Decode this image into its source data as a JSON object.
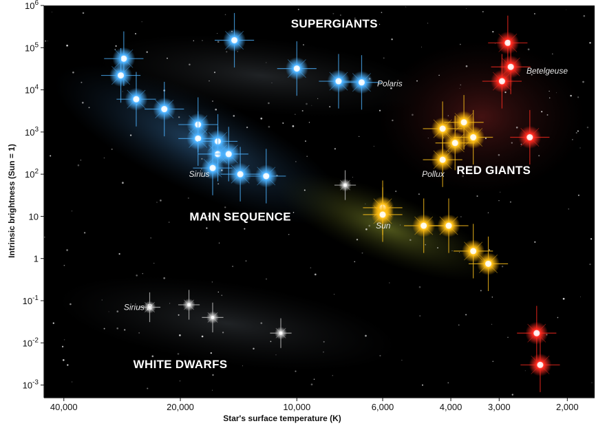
{
  "chart_data": {
    "type": "scatter",
    "title": "",
    "xlabel": "Star's surface temperature (K)",
    "ylabel": "Intrinsic brightness (Sun = 1)",
    "x_scale": "log",
    "x_reversed": true,
    "y_scale": "log",
    "xlim": [
      45000,
      1700
    ],
    "ylim": [
      0.0005,
      1000000
    ],
    "x_ticks": [
      {
        "value": 40000,
        "label": "40,000"
      },
      {
        "value": 20000,
        "label": "20,000"
      },
      {
        "value": 10000,
        "label": "10,000"
      },
      {
        "value": 6000,
        "label": "6,000"
      },
      {
        "value": 4000,
        "label": "4,000"
      },
      {
        "value": 3000,
        "label": "3,000"
      },
      {
        "value": 2000,
        "label": "2,000"
      }
    ],
    "y_ticks": [
      {
        "value": 1000000,
        "base": "10",
        "exp": "6"
      },
      {
        "value": 100000,
        "base": "10",
        "exp": "5"
      },
      {
        "value": 10000,
        "base": "10",
        "exp": "4"
      },
      {
        "value": 1000,
        "base": "10",
        "exp": "3"
      },
      {
        "value": 100,
        "base": "10",
        "exp": "2"
      },
      {
        "value": 10,
        "base": "10",
        "exp": ""
      },
      {
        "value": 1,
        "base": "1",
        "exp": ""
      },
      {
        "value": 0.1,
        "base": "10",
        "exp": "-1"
      },
      {
        "value": 0.01,
        "base": "10",
        "exp": "-2"
      },
      {
        "value": 0.001,
        "base": "10",
        "exp": "-3"
      }
    ],
    "regions": [
      {
        "label": "SUPERGIANTS",
        "x": 8000,
        "y": 300000
      },
      {
        "label": "RED GIANTS",
        "x": 3100,
        "y": 100
      },
      {
        "label": "MAIN SEQUENCE",
        "x": 14000,
        "y": 8
      },
      {
        "label": "WHITE DWARFS",
        "x": 20000,
        "y": 0.0025
      }
    ],
    "star_labels": [
      {
        "label": "Polaris",
        "x": 6200,
        "y": 14000
      },
      {
        "label": "Betelgeuse",
        "x": 2550,
        "y": 28000
      },
      {
        "label": "Sirius",
        "x": 19000,
        "y": 100
      },
      {
        "label": "Pollux",
        "x": 4750,
        "y": 100
      },
      {
        "label": "Sun",
        "x": 6250,
        "y": 6
      },
      {
        "label": "Sirius B",
        "x": 28000,
        "y": 0.07
      }
    ],
    "colors": {
      "background": "#000000",
      "blue": "#4db3ff",
      "yellow": "#ffc21a",
      "red": "#ff2a1f",
      "white": "#c8c8c8"
    },
    "series": [
      {
        "color": "blue",
        "points": [
          {
            "x": 28000,
            "y": 55000
          },
          {
            "x": 28500,
            "y": 22000
          },
          {
            "x": 26000,
            "y": 6000
          },
          {
            "x": 22000,
            "y": 3500
          },
          {
            "x": 18000,
            "y": 1500
          },
          {
            "x": 18000,
            "y": 700
          },
          {
            "x": 16000,
            "y": 600
          },
          {
            "x": 16000,
            "y": 300
          },
          {
            "x": 15000,
            "y": 300
          },
          {
            "x": 16500,
            "y": 140
          },
          {
            "x": 14000,
            "y": 100
          },
          {
            "x": 12000,
            "y": 90
          },
          {
            "x": 14500,
            "y": 150000
          },
          {
            "x": 10000,
            "y": 32000
          },
          {
            "x": 7800,
            "y": 16000
          },
          {
            "x": 6800,
            "y": 15000
          }
        ]
      },
      {
        "color": "yellow",
        "points": [
          {
            "x": 4200,
            "y": 1200
          },
          {
            "x": 3700,
            "y": 1700
          },
          {
            "x": 3900,
            "y": 550
          },
          {
            "x": 3500,
            "y": 750
          },
          {
            "x": 4200,
            "y": 220
          },
          {
            "x": 6000,
            "y": 16
          },
          {
            "x": 6000,
            "y": 11
          },
          {
            "x": 4700,
            "y": 6
          },
          {
            "x": 4050,
            "y": 6
          },
          {
            "x": 3500,
            "y": 1.5
          },
          {
            "x": 3200,
            "y": 0.75
          }
        ]
      },
      {
        "color": "red",
        "points": [
          {
            "x": 2850,
            "y": 130000
          },
          {
            "x": 2800,
            "y": 35000
          },
          {
            "x": 2950,
            "y": 16000
          },
          {
            "x": 2500,
            "y": 750
          },
          {
            "x": 2400,
            "y": 0.017
          },
          {
            "x": 2350,
            "y": 0.003
          }
        ]
      },
      {
        "color": "white",
        "points": [
          {
            "x": 7500,
            "y": 55
          },
          {
            "x": 24000,
            "y": 0.07
          },
          {
            "x": 19000,
            "y": 0.08
          },
          {
            "x": 16500,
            "y": 0.04
          },
          {
            "x": 11000,
            "y": 0.017
          }
        ]
      }
    ]
  }
}
